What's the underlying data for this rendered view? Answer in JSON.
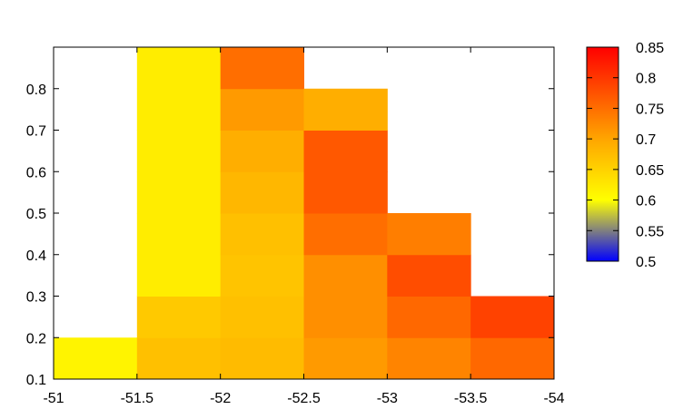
{
  "chart_data": {
    "type": "heatmap",
    "title": "",
    "xlabel": "",
    "ylabel": "",
    "x_edges": [
      -51,
      -51.5,
      -52,
      -52.5,
      -53,
      -53.5,
      -54
    ],
    "xlim": [
      -51,
      -54
    ],
    "ylim": [
      0.1,
      0.9
    ],
    "cell_height": 0.1,
    "x_ticks": [
      -51,
      -51.5,
      -52,
      -52.5,
      -53,
      -53.5,
      -54
    ],
    "x_tick_labels": [
      "-51",
      "-51.5",
      "-52",
      "-52.5",
      "-53",
      "-53.5",
      "-54"
    ],
    "y_ticks": [
      0.1,
      0.2,
      0.3,
      0.4,
      0.5,
      0.6,
      0.7,
      0.8
    ],
    "y_tick_labels": [
      "0.1",
      "0.2",
      "0.3",
      "0.4",
      "0.5",
      "0.6",
      "0.7",
      "0.8"
    ],
    "colorbar": {
      "min": 0.5,
      "max": 0.85,
      "ticks": [
        0.5,
        0.55,
        0.6,
        0.65,
        0.7,
        0.75,
        0.8,
        0.85
      ],
      "tick_labels": [
        "0.5",
        "0.55",
        "0.6",
        "0.65",
        "0.7",
        "0.75",
        "0.8",
        "0.85"
      ],
      "stops": [
        {
          "value": 0.5,
          "color": "#0000ff"
        },
        {
          "value": 0.6,
          "color": "#ffff00"
        },
        {
          "value": 0.7,
          "color": "#ffa500"
        },
        {
          "value": 0.85,
          "color": "#ff0000"
        }
      ]
    },
    "cells": [
      {
        "x0": -51,
        "x1": -51.5,
        "y0": 0.1,
        "y1": 0.2,
        "value": 0.612
      },
      {
        "x0": -51.5,
        "x1": -52,
        "y0": 0.1,
        "y1": 0.2,
        "value": 0.67
      },
      {
        "x0": -51.5,
        "x1": -52,
        "y0": 0.2,
        "y1": 0.3,
        "value": 0.66
      },
      {
        "x0": -51.5,
        "x1": -52,
        "y0": 0.3,
        "y1": 0.4,
        "value": 0.62
      },
      {
        "x0": -51.5,
        "x1": -52,
        "y0": 0.4,
        "y1": 0.5,
        "value": 0.62
      },
      {
        "x0": -51.5,
        "x1": -52,
        "y0": 0.5,
        "y1": 0.6,
        "value": 0.62
      },
      {
        "x0": -51.5,
        "x1": -52,
        "y0": 0.6,
        "y1": 0.7,
        "value": 0.62
      },
      {
        "x0": -51.5,
        "x1": -52,
        "y0": 0.7,
        "y1": 0.8,
        "value": 0.62
      },
      {
        "x0": -51.5,
        "x1": -52,
        "y0": 0.8,
        "y1": 0.9,
        "value": 0.62
      },
      {
        "x0": -52,
        "x1": -52.5,
        "y0": 0.1,
        "y1": 0.2,
        "value": 0.675
      },
      {
        "x0": -52,
        "x1": -52.5,
        "y0": 0.2,
        "y1": 0.3,
        "value": 0.67
      },
      {
        "x0": -52,
        "x1": -52.5,
        "y0": 0.3,
        "y1": 0.4,
        "value": 0.665
      },
      {
        "x0": -52,
        "x1": -52.5,
        "y0": 0.4,
        "y1": 0.5,
        "value": 0.67
      },
      {
        "x0": -52,
        "x1": -52.5,
        "y0": 0.5,
        "y1": 0.6,
        "value": 0.68
      },
      {
        "x0": -52,
        "x1": -52.5,
        "y0": 0.6,
        "y1": 0.7,
        "value": 0.69
      },
      {
        "x0": -52,
        "x1": -52.5,
        "y0": 0.7,
        "y1": 0.8,
        "value": 0.71
      },
      {
        "x0": -52,
        "x1": -52.5,
        "y0": 0.8,
        "y1": 0.9,
        "value": 0.75
      },
      {
        "x0": -52.5,
        "x1": -53,
        "y0": 0.1,
        "y1": 0.2,
        "value": 0.71
      },
      {
        "x0": -52.5,
        "x1": -53,
        "y0": 0.2,
        "y1": 0.3,
        "value": 0.72
      },
      {
        "x0": -52.5,
        "x1": -53,
        "y0": 0.3,
        "y1": 0.4,
        "value": 0.72
      },
      {
        "x0": -52.5,
        "x1": -53,
        "y0": 0.4,
        "y1": 0.5,
        "value": 0.75
      },
      {
        "x0": -52.5,
        "x1": -53,
        "y0": 0.5,
        "y1": 0.6,
        "value": 0.77
      },
      {
        "x0": -52.5,
        "x1": -53,
        "y0": 0.6,
        "y1": 0.7,
        "value": 0.77
      },
      {
        "x0": -52.5,
        "x1": -53,
        "y0": 0.7,
        "y1": 0.8,
        "value": 0.69
      },
      {
        "x0": -53,
        "x1": -53.5,
        "y0": 0.1,
        "y1": 0.2,
        "value": 0.73
      },
      {
        "x0": -53,
        "x1": -53.5,
        "y0": 0.2,
        "y1": 0.3,
        "value": 0.755
      },
      {
        "x0": -53,
        "x1": -53.5,
        "y0": 0.3,
        "y1": 0.4,
        "value": 0.78
      },
      {
        "x0": -53,
        "x1": -53.5,
        "y0": 0.4,
        "y1": 0.5,
        "value": 0.735
      },
      {
        "x0": -53.5,
        "x1": -54,
        "y0": 0.1,
        "y1": 0.2,
        "value": 0.755
      },
      {
        "x0": -53.5,
        "x1": -54,
        "y0": 0.2,
        "y1": 0.3,
        "value": 0.79
      }
    ]
  }
}
